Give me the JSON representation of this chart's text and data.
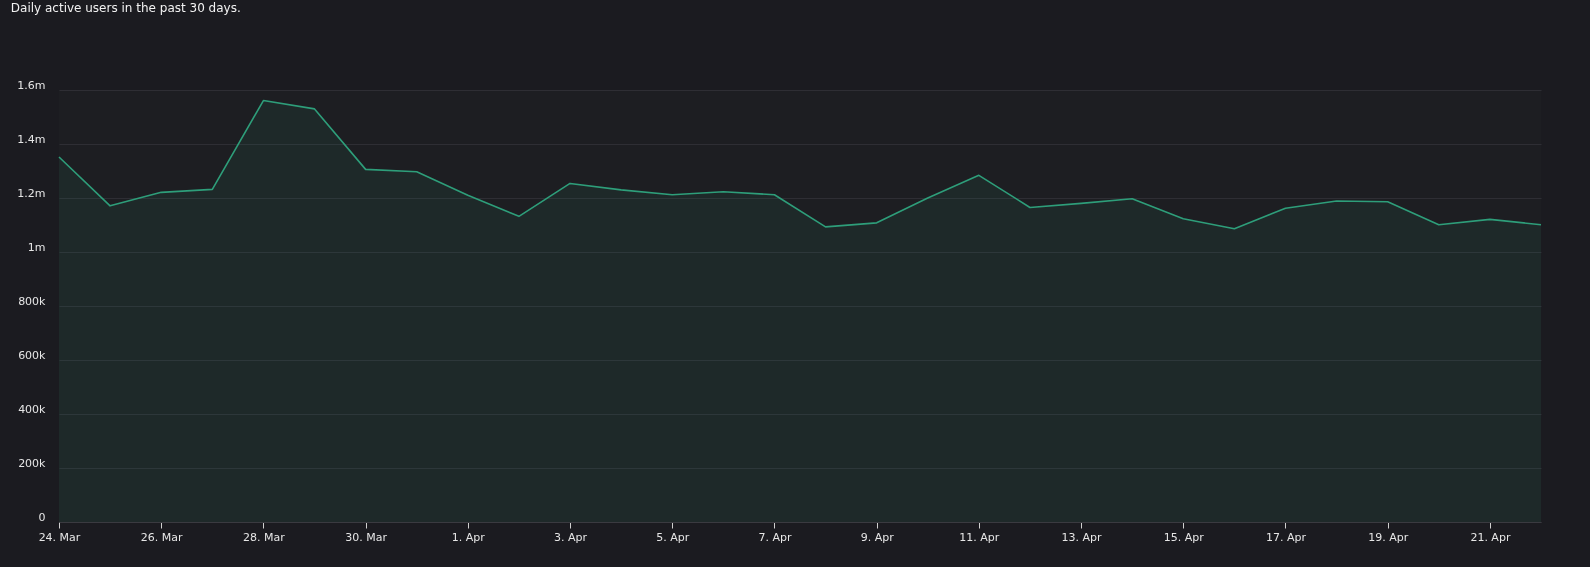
{
  "chart_data": {
    "type": "area",
    "title": "Daily active users in the past 30 days.",
    "x": [
      "--03-24",
      "--03-25",
      "--03-26",
      "--03-27",
      "--03-28",
      "--03-29",
      "--03-30",
      "--03-31",
      "--04-01",
      "--04-02",
      "--04-03",
      "--04-04",
      "--04-05",
      "--04-06",
      "--04-07",
      "--04-08",
      "--04-09",
      "--04-10",
      "--04-11",
      "--04-12",
      "--04-13",
      "--04-14",
      "--04-15",
      "--04-16",
      "--04-17",
      "--04-18",
      "--04-19",
      "--04-20",
      "--04-21",
      "--04-22"
    ],
    "series": [
      {
        "color": "#2e9e7a",
        "values": [
          1352000,
          1171000,
          1221000,
          1232000,
          1561000,
          1530000,
          1306000,
          1297000,
          1210000,
          1132000,
          1254000,
          1230000,
          1212000,
          1223000,
          1212000,
          1093000,
          1108000,
          1200000,
          1284000,
          1165000,
          1180000,
          1197000,
          1123000,
          1086000,
          1162000,
          1189000,
          1186000,
          1101000,
          1121000,
          1101000
        ]
      }
    ],
    "xlim": [
      "--03-24",
      "--04-22"
    ],
    "xticks": [
      {
        "value": "--03-24",
        "label": "24. Mar"
      },
      {
        "value": "--03-26",
        "label": "26. Mar"
      },
      {
        "value": "--03-28",
        "label": "28. Mar"
      },
      {
        "value": "--03-30",
        "label": "30. Mar"
      },
      {
        "value": "--04-01",
        "label": "1. Apr"
      },
      {
        "value": "--04-03",
        "label": "3. Apr"
      },
      {
        "value": "--04-05",
        "label": "5. Apr"
      },
      {
        "value": "--04-07",
        "label": "7. Apr"
      },
      {
        "value": "--04-09",
        "label": "9. Apr"
      },
      {
        "value": "--04-11",
        "label": "11. Apr"
      },
      {
        "value": "--04-13",
        "label": "13. Apr"
      },
      {
        "value": "--04-15",
        "label": "15. Apr"
      },
      {
        "value": "--04-17",
        "label": "17. Apr"
      },
      {
        "value": "--04-19",
        "label": "19. Apr"
      },
      {
        "value": "--04-21",
        "label": "21. Apr"
      }
    ],
    "ylim": [
      0,
      1600000
    ],
    "yticks": [
      0,
      {
        "value": 200000,
        "label": "200k"
      },
      {
        "value": 400000,
        "label": "400k"
      },
      {
        "value": 600000,
        "label": "600k"
      },
      {
        "value": 800000,
        "label": "800k"
      },
      {
        "value": 1000000,
        "label": "1m"
      },
      {
        "value": 1200000,
        "label": "1.2m"
      },
      {
        "value": 1400000,
        "label": "1.4m"
      },
      {
        "value": 1600000,
        "label": "1.6m"
      }
    ],
    "grid": "y",
    "legend": false
  }
}
